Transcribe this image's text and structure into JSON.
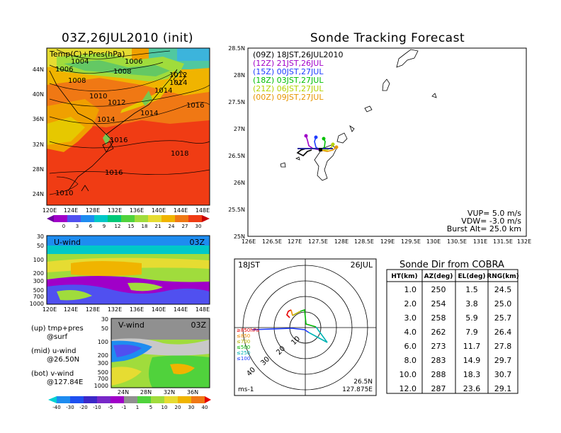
{
  "map_panel": {
    "title": "03Z,26JUL2010 (init)",
    "label": "Temp(C)+Pres(hPa)",
    "lat_ticks": [
      "44N",
      "40N",
      "36N",
      "32N",
      "28N",
      "24N"
    ],
    "lon_ticks": [
      "120E",
      "124E",
      "128E",
      "132E",
      "136E",
      "140E",
      "144E",
      "148E"
    ],
    "pressure_labels": [
      {
        "text": "1004"
      },
      {
        "text": "1006"
      },
      {
        "text": "1006"
      },
      {
        "text": "1008"
      },
      {
        "text": "1008"
      },
      {
        "text": "1010"
      },
      {
        "text": "1012"
      },
      {
        "text": "1012"
      },
      {
        "text": "1014"
      },
      {
        "text": "1014"
      },
      {
        "text": "1014"
      },
      {
        "text": "1016"
      },
      {
        "text": "1014"
      },
      {
        "text": "1016"
      },
      {
        "text": "1018"
      },
      {
        "text": "1016"
      },
      {
        "text": "1010"
      }
    ],
    "colorbar_labels": [
      "0",
      "3",
      "6",
      "9",
      "12",
      "15",
      "18",
      "21",
      "24",
      "27",
      "30"
    ]
  },
  "u_panel": {
    "label": "U-wind",
    "time": "03Z",
    "y_ticks": [
      "30",
      "50",
      "100",
      "200",
      "300",
      "500",
      "700",
      "1000"
    ],
    "x_ticks": [
      "120E",
      "124E",
      "128E",
      "132E",
      "136E",
      "140E",
      "144E",
      "148E"
    ]
  },
  "v_panel": {
    "label": "V-wind",
    "time": "03Z",
    "y_ticks": [
      "30",
      "50",
      "100",
      "200",
      "300",
      "500",
      "700",
      "1000"
    ],
    "x_ticks": [
      "24N",
      "28N",
      "32N",
      "36N"
    ],
    "colorbar_labels": [
      "-40",
      "-30",
      "-20",
      "-10",
      "-5",
      "-1",
      "1",
      "5",
      "10",
      "20",
      "30",
      "40"
    ]
  },
  "legend_text": {
    "up": "(up) tmp+pres",
    "up2": "@surf",
    "mid": "(mid) u-wind",
    "mid2": "@26.50N",
    "bot": "(bot) v-wind",
    "bot2": "@127.84E"
  },
  "tracking": {
    "title": "Sonde Tracking Forecast",
    "lat_ticks": [
      "28.5N",
      "28N",
      "27.5N",
      "27N",
      "26.5N",
      "26N",
      "25.5N",
      "25N"
    ],
    "lon_ticks": [
      "126E",
      "126.5E",
      "127E",
      "127.5E",
      "128E",
      "128.5E",
      "129E",
      "129.5E",
      "130E",
      "130.5E",
      "131E",
      "131.5E",
      "132E"
    ],
    "legend": [
      {
        "text": "(09Z)  18JST,26JUL2010",
        "color": "#000000"
      },
      {
        "text": "(12Z)  21JST,26JUL",
        "color": "#a000c8"
      },
      {
        "text": "(15Z)  00JST,27JUL",
        "color": "#1e3cff"
      },
      {
        "text": "(18Z)  03JST,27JUL",
        "color": "#00c000"
      },
      {
        "text": "(21Z)  06JST,27JUL",
        "color": "#b4d200"
      },
      {
        "text": "(00Z)  09JST,27JUL",
        "color": "#e69600"
      }
    ],
    "vup": "VUP= 5.0 m/s",
    "vdw": "VDW= -3.0 m/s",
    "burst": "Burst Alt= 25.0 km"
  },
  "polar": {
    "time": "18JST",
    "date": "26JUL",
    "lat": "26.5N",
    "lon": "127.875E",
    "units": "ms-1",
    "ring_labels": [
      "10",
      "20",
      "30",
      "40"
    ],
    "levels": [
      {
        "text": "≥850hPa",
        "color": "#e60000"
      },
      {
        "text": "≤850",
        "color": "#f08c00"
      },
      {
        "text": "≤700",
        "color": "#b4b400"
      },
      {
        "text": "≤500",
        "color": "#00b400"
      },
      {
        "text": "≤250",
        "color": "#00b4b4"
      },
      {
        "text": "≤100",
        "color": "#1e3cff"
      }
    ]
  },
  "table": {
    "title": "Sonde Dir from COBRA",
    "headers": [
      "HT(km)",
      "AZ(deg)",
      "EL(deg)",
      "RNG(km)"
    ],
    "rows": [
      [
        "1.0",
        "250",
        "1.5",
        "24.5"
      ],
      [
        "2.0",
        "254",
        "3.8",
        "25.0"
      ],
      [
        "3.0",
        "258",
        "5.9",
        "25.7"
      ],
      [
        "4.0",
        "262",
        "7.9",
        "26.4"
      ],
      [
        "6.0",
        "273",
        "11.7",
        "27.8"
      ],
      [
        "8.0",
        "283",
        "14.9",
        "29.7"
      ],
      [
        "10.0",
        "288",
        "18.3",
        "30.7"
      ],
      [
        "12.0",
        "287",
        "23.6",
        "29.1"
      ]
    ]
  },
  "chart_data": {
    "type": "table",
    "title": "Sonde Dir from COBRA",
    "columns": [
      "HT(km)",
      "AZ(deg)",
      "EL(deg)",
      "RNG(km)"
    ],
    "rows": [
      [
        1.0,
        250,
        1.5,
        24.5
      ],
      [
        2.0,
        254,
        3.8,
        25.0
      ],
      [
        3.0,
        258,
        5.9,
        25.7
      ],
      [
        4.0,
        262,
        7.9,
        26.4
      ],
      [
        6.0,
        273,
        11.7,
        27.8
      ],
      [
        8.0,
        283,
        14.9,
        29.7
      ],
      [
        10.0,
        288,
        18.3,
        30.7
      ],
      [
        12.0,
        287,
        23.6,
        29.1
      ]
    ]
  }
}
